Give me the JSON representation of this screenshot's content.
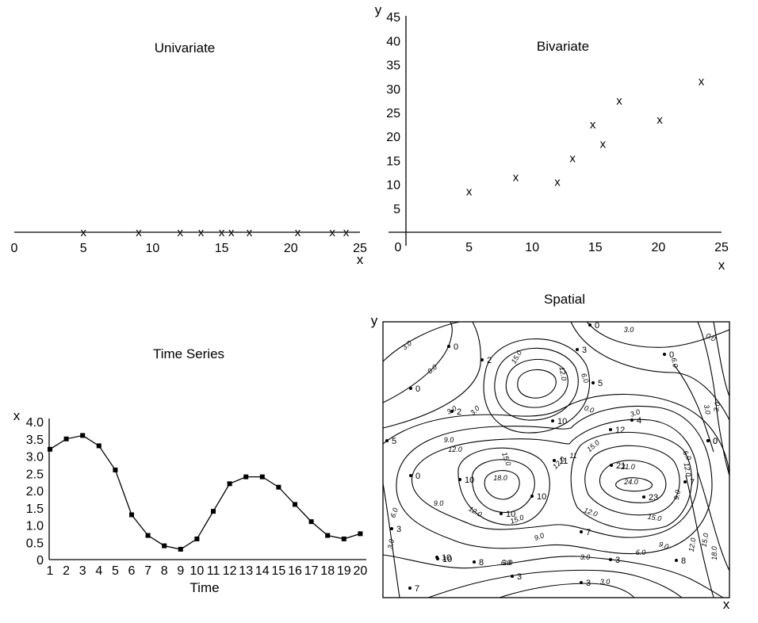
{
  "chart_data": [
    {
      "type": "scatter",
      "title": "Univariate",
      "xlabel": "x",
      "xlim": [
        0,
        25
      ],
      "xticks": [
        "0",
        "5",
        "10",
        "15",
        "20",
        "25"
      ],
      "marker": "x",
      "x": [
        5,
        9,
        12,
        13.5,
        15,
        15.7,
        17,
        20.5,
        23,
        24
      ]
    },
    {
      "type": "scatter",
      "title": "Bivariate",
      "xlabel": "x",
      "ylabel": "y",
      "xlim": [
        0,
        25
      ],
      "ylim": [
        0,
        45
      ],
      "xticks": [
        "0",
        "5",
        "10",
        "15",
        "20",
        "25"
      ],
      "yticks": [
        "5",
        "10",
        "15",
        "20",
        "25",
        "30",
        "35",
        "40",
        "45"
      ],
      "marker": "x",
      "points": [
        {
          "x": 5,
          "y": 8.5
        },
        {
          "x": 8.7,
          "y": 11.5
        },
        {
          "x": 12,
          "y": 10.5
        },
        {
          "x": 13.2,
          "y": 15.5
        },
        {
          "x": 14.8,
          "y": 22.5
        },
        {
          "x": 15.6,
          "y": 18.5
        },
        {
          "x": 16.9,
          "y": 27.5
        },
        {
          "x": 20.1,
          "y": 23.5
        },
        {
          "x": 23.4,
          "y": 31.5
        }
      ]
    },
    {
      "type": "line",
      "title": "Time Series",
      "xlabel": "Time",
      "ylabel": "x",
      "ylim": [
        0,
        4.0
      ],
      "categories": [
        "1",
        "2",
        "3",
        "4",
        "5",
        "6",
        "7",
        "8",
        "9",
        "10",
        "11",
        "12",
        "13",
        "14",
        "15",
        "16",
        "17",
        "18",
        "19",
        "20"
      ],
      "yticks": [
        "0",
        "0.5",
        "1.0",
        "1.5",
        "2.0",
        "2.5",
        "3.0",
        "3.5",
        "4.0"
      ],
      "values": [
        3.2,
        3.5,
        3.6,
        3.3,
        2.6,
        1.3,
        0.7,
        0.4,
        0.3,
        0.6,
        1.4,
        2.2,
        2.4,
        2.4,
        2.1,
        1.6,
        1.1,
        0.7,
        0.6,
        0.75
      ]
    },
    {
      "type": "contour",
      "title": "Spatial",
      "xlabel": "x",
      "ylabel": "y",
      "contour_labels": [
        "3.0",
        "0.0",
        "15.0",
        "12.0",
        "6.0",
        "3.0",
        "3.0",
        "0.0",
        "3.0",
        "6.0",
        "3.0",
        "3.0",
        "0.0",
        "9.0",
        "12.0",
        "15.0",
        "18.0",
        "12.0",
        "11",
        "15.0",
        "21.0",
        "24.0",
        "12.0",
        "9.0",
        "6.0",
        "9.0",
        "12.0",
        "15.0",
        "6.0",
        "3.0",
        "9.0",
        "12.0",
        "15.0",
        "3.0",
        "12.0",
        "18.0",
        "15.0",
        "6.0",
        "3.0",
        "3.0",
        "9.0",
        "6.0",
        "3.0"
      ],
      "point_values": [
        "0",
        "2",
        "0",
        "2",
        "3",
        "0",
        "5",
        "0",
        "10",
        "12",
        "4",
        "0",
        "5",
        "0",
        "10",
        "11",
        "21",
        "23",
        "7",
        "10",
        "10",
        "10",
        "3",
        "7",
        "10",
        "8",
        "3",
        "8",
        "3",
        "7",
        "0",
        "3"
      ]
    }
  ]
}
